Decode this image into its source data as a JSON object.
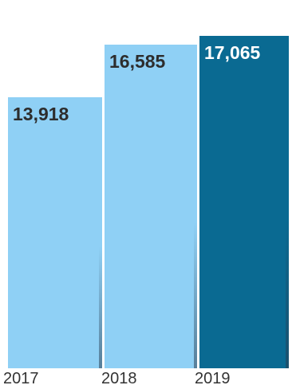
{
  "subtitle": "",
  "colors": {
    "bar_light": "#8fd0f5",
    "bar_highlight": "#0a6a92",
    "label_dark": "#2d2d2d",
    "label_light": "#ffffff"
  },
  "chart_data": {
    "type": "bar",
    "title": "",
    "xlabel": "",
    "ylabel": "",
    "categories": [
      "2017",
      "2018",
      "2019"
    ],
    "category_labels": [
      "2017",
      "2018",
      "2019"
    ],
    "values": [
      13918,
      16585,
      17065
    ],
    "value_labels": [
      "13,918",
      "16,585",
      "17,065"
    ],
    "highlight_index": 2,
    "ylim": [
      0,
      17500
    ],
    "grid": false,
    "legend": "none"
  }
}
